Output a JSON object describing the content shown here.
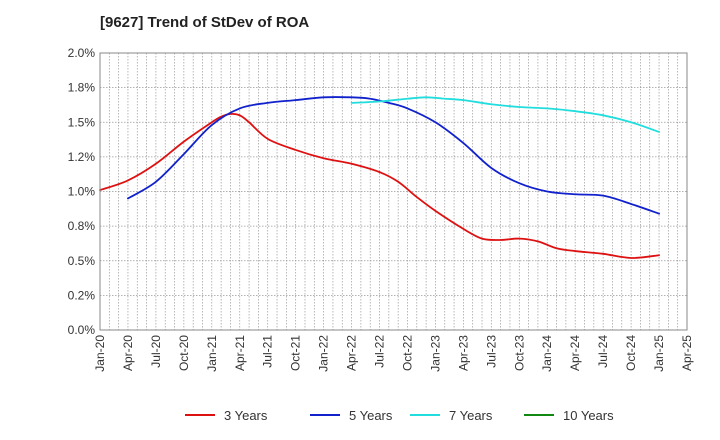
{
  "chart_data": {
    "type": "line",
    "title": "[9627]  Trend of StDev of ROA",
    "xlabel": "",
    "ylabel": "",
    "grid": true,
    "legend_position": "bottom",
    "x_range": [
      "2020-01",
      "2025-04"
    ],
    "ylim": [
      0.0,
      2.0
    ],
    "y_ticks": [
      0.0,
      0.25,
      0.5,
      0.75,
      1.0,
      1.25,
      1.5,
      1.75,
      2.0
    ],
    "y_tick_labels": [
      "0.0%",
      "0.2%",
      "0.5%",
      "0.8%",
      "1.0%",
      "1.2%",
      "1.5%",
      "1.8%",
      "2.0%"
    ],
    "x_tick_labels": [
      "Jan-20",
      "Apr-20",
      "Jul-20",
      "Oct-20",
      "Jan-21",
      "Apr-21",
      "Jul-21",
      "Oct-21",
      "Jan-22",
      "Apr-22",
      "Jul-22",
      "Oct-22",
      "Jan-23",
      "Apr-23",
      "Jul-23",
      "Oct-23",
      "Jan-24",
      "Apr-24",
      "Jul-24",
      "Oct-24",
      "Jan-25",
      "Apr-25"
    ],
    "series": [
      {
        "name": "3 Years",
        "color": "#dd1111",
        "x": [
          "2020-01",
          "2020-04",
          "2020-07",
          "2020-10",
          "2021-01",
          "2021-02",
          "2021-03",
          "2021-04",
          "2021-05",
          "2021-07",
          "2021-10",
          "2022-01",
          "2022-04",
          "2022-07",
          "2022-09",
          "2022-11",
          "2023-01",
          "2023-04",
          "2023-06",
          "2023-08",
          "2023-10",
          "2023-12",
          "2024-02",
          "2024-04",
          "2024-07",
          "2024-10",
          "2025-01"
        ],
        "values": [
          1.01,
          1.08,
          1.2,
          1.36,
          1.5,
          1.54,
          1.56,
          1.55,
          1.5,
          1.38,
          1.3,
          1.24,
          1.2,
          1.14,
          1.07,
          0.96,
          0.86,
          0.73,
          0.66,
          0.65,
          0.66,
          0.64,
          0.59,
          0.57,
          0.55,
          0.52,
          0.54
        ]
      },
      {
        "name": "5 Years",
        "color": "#1122cc",
        "x": [
          "2020-04",
          "2020-07",
          "2020-10",
          "2021-01",
          "2021-04",
          "2021-07",
          "2021-10",
          "2022-01",
          "2022-04",
          "2022-06",
          "2022-08",
          "2022-10",
          "2023-01",
          "2023-04",
          "2023-07",
          "2023-10",
          "2024-01",
          "2024-04",
          "2024-07",
          "2024-10",
          "2025-01"
        ],
        "values": [
          0.95,
          1.07,
          1.27,
          1.48,
          1.6,
          1.64,
          1.66,
          1.68,
          1.68,
          1.67,
          1.64,
          1.6,
          1.5,
          1.35,
          1.17,
          1.06,
          1.0,
          0.98,
          0.97,
          0.91,
          0.84
        ]
      },
      {
        "name": "7 Years",
        "color": "#22dddd",
        "x": [
          "2022-04",
          "2022-07",
          "2022-10",
          "2022-12",
          "2023-02",
          "2023-04",
          "2023-07",
          "2023-10",
          "2024-01",
          "2024-04",
          "2024-07",
          "2024-10",
          "2025-01"
        ],
        "values": [
          1.64,
          1.65,
          1.67,
          1.68,
          1.67,
          1.66,
          1.63,
          1.61,
          1.6,
          1.58,
          1.55,
          1.5,
          1.43
        ]
      },
      {
        "name": "10 Years",
        "color": "#118811",
        "x": [],
        "values": []
      }
    ]
  }
}
